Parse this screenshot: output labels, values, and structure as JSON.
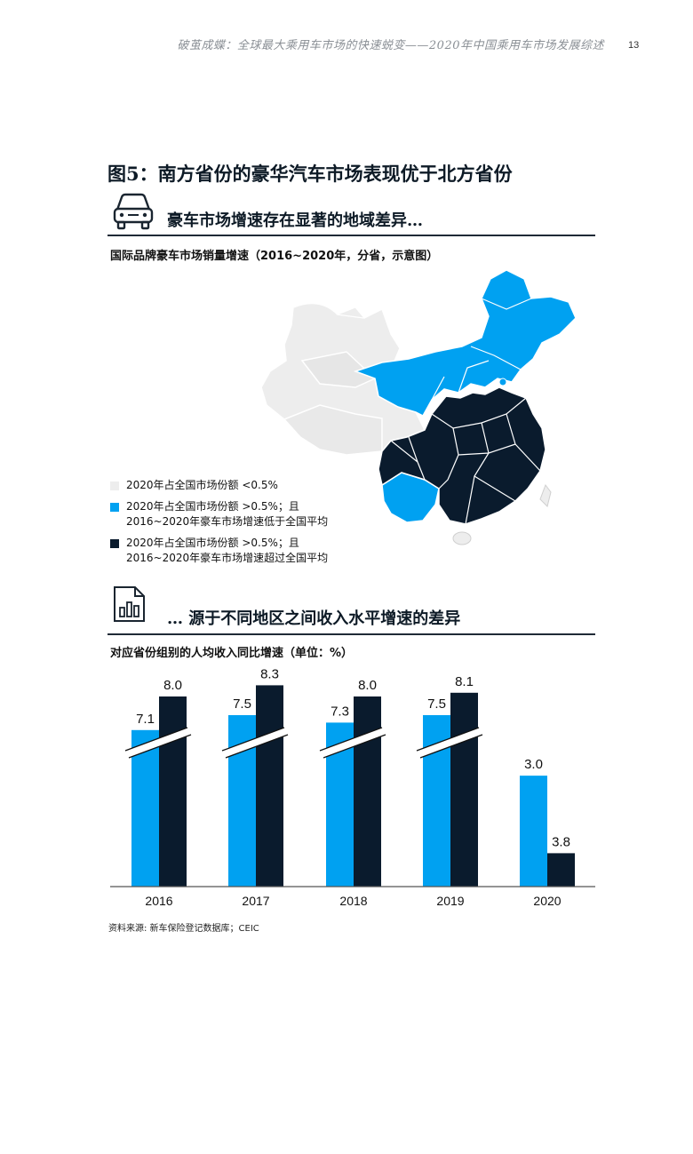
{
  "header": {
    "running_title": "破茧成蝶：全球最大乘用车市场的快速蜕变——2020年中国乘用车市场发展综述",
    "page_number": "13"
  },
  "figure": {
    "title": "图5：南方省份的豪华汽车市场表现优于北方省份"
  },
  "section1": {
    "heading": "豪车市场增速存在显著的地域差异…",
    "icon": "car-icon",
    "map_caption": "国际品牌豪车市场销量增速（2016~2020年，分省，示意图）",
    "legend": [
      {
        "line1": "2020年占全国市场份额 <0.5%",
        "line2": "",
        "color": "#ededed"
      },
      {
        "line1": "2020年占全国市场份额 >0.5%；且",
        "line2": "2016~2020年豪车市场增速低于全国平均",
        "color": "#00a1f1"
      },
      {
        "line1": "2020年占全国市场份额 >0.5%；且",
        "line2": "2016~2020年豪车市场增速超过全国平均",
        "color": "#0a1b2d"
      }
    ],
    "map_colors": {
      "grey": "#ededed",
      "light_blue": "#00a1f1",
      "navy": "#0a1b2d"
    }
  },
  "section2": {
    "heading": "… 源于不同地区之间收入水平增速的差异",
    "icon": "document-chart-icon",
    "chart_caption": "对应省份组别的人均收入同比增速（单位：%）"
  },
  "chart_data": {
    "type": "bar",
    "categories": [
      "2016",
      "2017",
      "2018",
      "2019",
      "2020"
    ],
    "series": [
      {
        "values": [
          7.1,
          7.5,
          7.3,
          7.5,
          3.0
        ],
        "color": "#00a1f1"
      },
      {
        "values": [
          8.0,
          8.3,
          8.0,
          8.1,
          3.8
        ],
        "color": "#0a1b2d"
      }
    ],
    "value_labels": [
      [
        "7.1",
        "8.0"
      ],
      [
        "7.5",
        "8.3"
      ],
      [
        "7.3",
        "8.0"
      ],
      [
        "7.5",
        "8.1"
      ],
      [
        "3.0",
        "3.8"
      ]
    ],
    "axis_break_years": [
      "2016",
      "2017",
      "2018",
      "2019"
    ],
    "title": "",
    "xlabel": "",
    "ylabel": "",
    "grid": false,
    "legend": "none"
  },
  "source": "资料来源: 新车保险登记数据库；CEIC"
}
